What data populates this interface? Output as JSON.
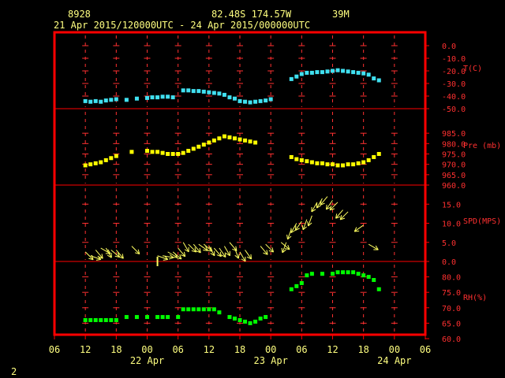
{
  "header": {
    "station": "8928",
    "position": "82.48S  174.57W",
    "elevation": "39M",
    "time_range": "21 Apr 2015/120000UTC - 24 Apr 2015/000000UTC"
  },
  "footer": {
    "page_number": "2"
  },
  "colors": {
    "frame": "#ff0000",
    "grid": "#ff3030",
    "text": "#ffff80",
    "temperature": "#40e0f0",
    "pressure": "#ffff00",
    "wind": "#ffff60",
    "humidity": "#00ff00"
  },
  "chart_data": {
    "type": "multi-panel time series",
    "x_axis": {
      "unit": "hours since 21 Apr 06UTC",
      "range": [
        0,
        72
      ],
      "ticks": [
        {
          "x": 0,
          "label": "06"
        },
        {
          "x": 6,
          "label": "12"
        },
        {
          "x": 12,
          "label": "18"
        },
        {
          "x": 18,
          "label": "00"
        },
        {
          "x": 24,
          "label": "06"
        },
        {
          "x": 30,
          "label": "12"
        },
        {
          "x": 36,
          "label": "18"
        },
        {
          "x": 42,
          "label": "00"
        },
        {
          "x": 48,
          "label": "06"
        },
        {
          "x": 54,
          "label": "12"
        },
        {
          "x": 60,
          "label": "18"
        },
        {
          "x": 66,
          "label": "00"
        },
        {
          "x": 72,
          "label": "06"
        }
      ],
      "date_labels": [
        {
          "x": 18,
          "label": "22 Apr"
        },
        {
          "x": 42,
          "label": "23 Apr"
        },
        {
          "x": 66,
          "label": "24 Apr"
        }
      ]
    },
    "panels": [
      {
        "name": "T(C)",
        "ylim": [
          -50,
          0
        ],
        "ticks": [
          "0.0",
          "-10.0",
          "-20.0",
          "-30.0",
          "-40.0",
          "-50.0"
        ],
        "tick_values": [
          0,
          -10,
          -20,
          -30,
          -40,
          -50
        ],
        "x": [
          6,
          7,
          8,
          9,
          10,
          11,
          12,
          14,
          16,
          18,
          19,
          20,
          21,
          22,
          23,
          25,
          26,
          27,
          28,
          29,
          30,
          31,
          32,
          33,
          34,
          35,
          36,
          37,
          38,
          39,
          40,
          41,
          42,
          46,
          47,
          48,
          49,
          50,
          51,
          52,
          53,
          54,
          55,
          56,
          57,
          58,
          59,
          60,
          61,
          62,
          63
        ],
        "values": [
          -44,
          -44.5,
          -44,
          -44.5,
          -43.5,
          -43,
          -42.5,
          -43,
          -42,
          -41.5,
          -41,
          -41,
          -40.5,
          -40.5,
          -41,
          -35.5,
          -35.5,
          -36,
          -36,
          -36.5,
          -37,
          -37.5,
          -38,
          -39,
          -41,
          -42,
          -44,
          -44.5,
          -45,
          -44.5,
          -44,
          -43.5,
          -42.5,
          -26.5,
          -24.5,
          -22.5,
          -21.5,
          -21.5,
          -21,
          -21,
          -20.5,
          -20,
          -19.5,
          -20,
          -20.5,
          -21,
          -21.5,
          -22,
          -23,
          -26,
          -27.5
        ]
      },
      {
        "name": "Pre (mb)",
        "ylim": [
          960,
          990
        ],
        "ticks": [
          "985.0",
          "980.0",
          "975.0",
          "970.0",
          "965.0",
          "960.0"
        ],
        "tick_values": [
          985,
          980,
          975,
          970,
          965,
          960
        ],
        "x": [
          6,
          7,
          8,
          9,
          10,
          11,
          12,
          15,
          18,
          19,
          20,
          21,
          22,
          23,
          24,
          25,
          26,
          27,
          28,
          29,
          30,
          31,
          32,
          33,
          34,
          35,
          36,
          37,
          38,
          39,
          46,
          47,
          48,
          49,
          50,
          51,
          52,
          53,
          54,
          55,
          56,
          57,
          58,
          59,
          60,
          61,
          62,
          63
        ],
        "values": [
          969.5,
          970,
          970.5,
          971,
          972,
          973,
          974,
          976,
          976.5,
          976,
          976,
          975.5,
          975,
          975,
          975,
          975.5,
          976.5,
          977.5,
          978.5,
          979.5,
          980.5,
          981.5,
          982.5,
          983.5,
          983,
          982.5,
          982,
          981.5,
          981,
          980.5,
          973.5,
          972.5,
          972,
          971.5,
          971,
          970.5,
          970.5,
          970,
          970,
          969.5,
          969.5,
          970,
          970,
          970.5,
          971,
          972,
          973.5,
          975
        ]
      },
      {
        "name": "SPD(MPS)",
        "ylim": [
          0,
          20
        ],
        "ticks": [
          "15.0",
          "10.0",
          "5.0",
          "0.0"
        ],
        "tick_values": [
          15,
          10,
          5,
          0
        ],
        "x": [
          6,
          7,
          8,
          9,
          10,
          11,
          12,
          15,
          20,
          21,
          22,
          23,
          24,
          25,
          26,
          27,
          28,
          29,
          30,
          31,
          32,
          33,
          34,
          35,
          36,
          37,
          40,
          41,
          44,
          45,
          46,
          47,
          48,
          49,
          50,
          51,
          52,
          53,
          54,
          55,
          56,
          57,
          60,
          61
        ],
        "values": [
          2.5,
          1.5,
          3,
          3.5,
          3.5,
          3,
          3,
          4,
          1.5,
          1.5,
          2.5,
          2.5,
          3.5,
          5,
          4.5,
          4.5,
          4.5,
          4.5,
          4,
          3.5,
          3.5,
          4,
          5,
          3.5,
          2.5,
          3,
          4,
          4.5,
          5,
          5,
          8.5,
          10,
          10.5,
          11,
          12,
          15.5,
          16.5,
          17,
          16,
          15.5,
          13.5,
          13,
          9.5,
          4.5
        ],
        "directions_deg": [
          135,
          110,
          140,
          120,
          150,
          130,
          140,
          135,
          110,
          100,
          120,
          130,
          140,
          150,
          135,
          140,
          125,
          130,
          150,
          140,
          145,
          150,
          140,
          160,
          150,
          145,
          140,
          135,
          130,
          200,
          200,
          210,
          215,
          200,
          200,
          210,
          210,
          220,
          215,
          225,
          220,
          225,
          235,
          120
        ],
        "calm_marker_x": 20
      },
      {
        "name": "RH(%)",
        "ylim": [
          60,
          85
        ],
        "ticks": [
          "80.0",
          "75.0",
          "70.0",
          "65.0",
          "60.0"
        ],
        "tick_values": [
          80,
          75,
          70,
          65,
          60
        ],
        "x": [
          6,
          7,
          8,
          9,
          10,
          11,
          12,
          14,
          16,
          18,
          20,
          21,
          22,
          24,
          25,
          26,
          27,
          28,
          29,
          30,
          31,
          32,
          34,
          35,
          36,
          37,
          38,
          39,
          40,
          41,
          46,
          47,
          48,
          49,
          50,
          52,
          54,
          55,
          56,
          57,
          58,
          59,
          60,
          61,
          62,
          63
        ],
        "values": [
          66,
          66,
          66,
          66,
          66,
          66,
          66,
          67,
          67,
          67,
          67,
          67,
          67,
          67,
          69.5,
          69.5,
          69.5,
          69.5,
          69.5,
          69.5,
          69.5,
          68.5,
          67,
          66.5,
          66,
          65.5,
          65,
          65.5,
          66.5,
          67,
          76,
          77,
          78,
          80.5,
          81,
          81,
          81,
          81.5,
          81.5,
          81.5,
          81.5,
          81,
          80.5,
          80,
          79,
          76
        ]
      }
    ]
  }
}
